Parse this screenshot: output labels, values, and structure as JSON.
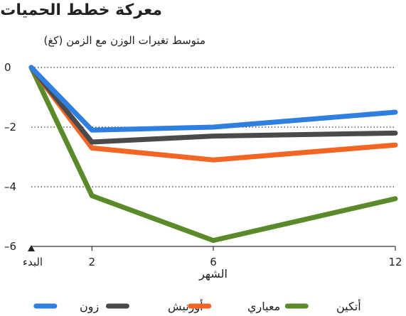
{
  "chart_data": {
    "type": "line",
    "title": "معركة خطط الحميات",
    "subtitle": "متوسط تغيرات الوزن مع الزمن (كغ)",
    "xlabel": "الشهر",
    "ylabel": "",
    "x": [
      0,
      2,
      6,
      12
    ],
    "x_tick_labels": [
      "البدء",
      "2",
      "6",
      "12"
    ],
    "y_ticks": [
      0,
      -2,
      -4,
      -6
    ],
    "y_tick_labels": [
      "0",
      "–2",
      "–4",
      "–6"
    ],
    "xlim": [
      0,
      12
    ],
    "ylim": [
      -6,
      0
    ],
    "grid": "dotted horizontal",
    "legend_position": "bottom",
    "series": [
      {
        "name": "زون",
        "color": "#2f7fe0",
        "values": [
          0,
          -2.1,
          -2.0,
          -1.5
        ]
      },
      {
        "name": "أورنيش",
        "color": "#4a4a4a",
        "values": [
          0,
          -2.5,
          -2.3,
          -2.2
        ]
      },
      {
        "name": "معياري",
        "color": "#f26522",
        "values": [
          0,
          -2.7,
          -3.1,
          -2.6
        ]
      },
      {
        "name": "أتكين",
        "color": "#5a8a2a",
        "values": [
          0,
          -4.3,
          -5.8,
          -4.4
        ]
      }
    ]
  }
}
